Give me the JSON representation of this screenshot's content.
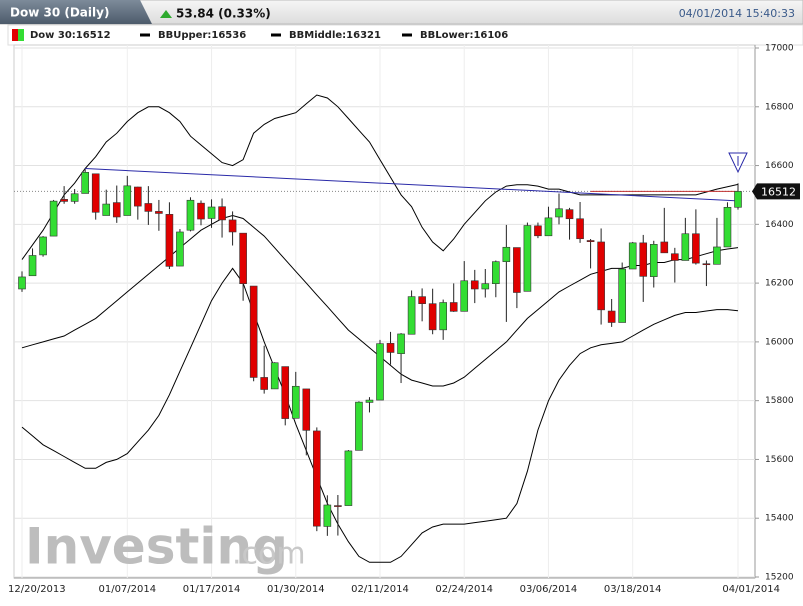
{
  "header": {
    "title": "Dow 30 (Daily)",
    "change": "53.84 (0.33%)",
    "timestamp": "04/01/2014 15:40:33"
  },
  "chart_data": {
    "type": "candlestick",
    "categories": [
      "12/20/2013",
      null,
      null,
      null,
      null,
      null,
      null,
      null,
      null,
      null,
      "01/07/2014",
      null,
      null,
      null,
      null,
      null,
      null,
      null,
      "01/17/2014",
      null,
      null,
      null,
      null,
      null,
      null,
      null,
      "01/30/2014",
      null,
      null,
      null,
      null,
      null,
      null,
      null,
      "02/11/2014",
      null,
      null,
      null,
      null,
      null,
      null,
      null,
      "02/24/2014",
      null,
      null,
      null,
      null,
      null,
      null,
      null,
      "03/06/2014",
      null,
      null,
      null,
      null,
      null,
      null,
      null,
      "03/18/2014",
      null,
      null,
      null,
      null,
      null,
      null,
      null,
      null,
      null,
      "04/01/2014"
    ],
    "candles": {
      "name": "Dow 30:16512",
      "up_color": "#33dd33",
      "down_color": "#e00000",
      "open": [
        16180,
        16225,
        16296,
        16360,
        16485,
        16478,
        16505,
        16572,
        16430,
        16474,
        16430,
        16527,
        16471,
        16444,
        16434,
        16258,
        16380,
        16472,
        16420,
        16460,
        16415,
        16370,
        16190,
        15879,
        15840,
        15916,
        15740,
        15840,
        15697,
        15372,
        15443,
        15443,
        15631,
        15794,
        15802,
        15995,
        15960,
        16026,
        16154,
        16130,
        16041,
        16134,
        16104,
        16208,
        16180,
        16198,
        16273,
        16321,
        16172,
        16395,
        16361,
        16425,
        16450,
        16419,
        16345,
        16340,
        16105,
        16066,
        16248,
        16337,
        16222,
        16340,
        16300,
        16277,
        16368,
        16266,
        16264,
        16323,
        16458
      ],
      "high": [
        16240,
        16318,
        16360,
        16483,
        16530,
        16520,
        16588,
        16573,
        16518,
        16532,
        16565,
        16528,
        16530,
        16483,
        16475,
        16384,
        16492,
        16481,
        16485,
        16488,
        16444,
        16370,
        16190,
        15987,
        15931,
        15916,
        15898,
        15840,
        15709,
        15478,
        15479,
        15632,
        15798,
        15812,
        16007,
        16034,
        16030,
        16175,
        16182,
        16181,
        16144,
        16199,
        16275,
        16245,
        16248,
        16277,
        16398,
        16321,
        16406,
        16406,
        16460,
        16505,
        16456,
        16476,
        16350,
        16386,
        16146,
        16270,
        16340,
        16364,
        16344,
        16456,
        16320,
        16422,
        16451,
        16277,
        16422,
        16475,
        16540
      ],
      "low": [
        16170,
        16225,
        16290,
        16360,
        16470,
        16470,
        16505,
        16416,
        16430,
        16405,
        16430,
        16416,
        16398,
        16378,
        16248,
        16258,
        16376,
        16397,
        16388,
        16355,
        16328,
        16140,
        15866,
        15824,
        15840,
        15716,
        15740,
        15614,
        15356,
        15340,
        15341,
        15443,
        15631,
        15760,
        15802,
        15923,
        15860,
        16026,
        16070,
        16026,
        16007,
        16102,
        16104,
        16132,
        16151,
        16152,
        16068,
        16115,
        16172,
        16353,
        16361,
        16400,
        16348,
        16337,
        16250,
        16059,
        16051,
        16066,
        16248,
        16136,
        16185,
        16303,
        16202,
        16277,
        16263,
        16190,
        16264,
        16323,
        16450
      ],
      "close": [
        16221,
        16294,
        16357,
        16479,
        16478,
        16504,
        16577,
        16441,
        16469,
        16425,
        16531,
        16462,
        16444,
        16437,
        16257,
        16374,
        16482,
        16418,
        16459,
        16415,
        16374,
        16198,
        15879,
        15838,
        15929,
        15739,
        15849,
        15699,
        15373,
        15445,
        15441,
        15629,
        15795,
        15802,
        15994,
        15964,
        16027,
        16154,
        16130,
        16041,
        16134,
        16104,
        16208,
        16180,
        16198,
        16273,
        16322,
        16168,
        16396,
        16361,
        16422,
        16453,
        16419,
        16351,
        16341,
        16109,
        16066,
        16248,
        16337,
        16223,
        16332,
        16303,
        16277,
        16368,
        16268,
        16264,
        16323,
        16458,
        16512
      ]
    },
    "series": [
      {
        "name": "BBUpper:16536",
        "color": "#000000",
        "values": [
          16280,
          16330,
          16380,
          16440,
          16500,
          16540,
          16590,
          16630,
          16680,
          16710,
          16750,
          16780,
          16800,
          16800,
          16780,
          16750,
          16700,
          16670,
          16640,
          16610,
          16600,
          16620,
          16710,
          16740,
          16760,
          16770,
          16780,
          16810,
          16840,
          16830,
          16800,
          16760,
          16720,
          16680,
          16620,
          16560,
          16500,
          16460,
          16390,
          16340,
          16310,
          16350,
          16400,
          16440,
          16480,
          16510,
          16530,
          16535,
          16535,
          16530,
          16520,
          16520,
          16510,
          16500,
          16500,
          16500,
          16500,
          16500,
          16500,
          16500,
          16500,
          16500,
          16500,
          16500,
          16500,
          16510,
          16520,
          16528,
          16536
        ]
      },
      {
        "name": "BBMiddle:16321",
        "color": "#000000",
        "values": [
          15980,
          15990,
          16000,
          16010,
          16020,
          16040,
          16060,
          16080,
          16110,
          16140,
          16170,
          16200,
          16230,
          16260,
          16290,
          16320,
          16350,
          16380,
          16400,
          16420,
          16430,
          16420,
          16390,
          16360,
          16320,
          16280,
          16240,
          16200,
          16160,
          16120,
          16080,
          16040,
          16010,
          15980,
          15950,
          15920,
          15890,
          15870,
          15860,
          15850,
          15850,
          15860,
          15880,
          15910,
          15940,
          15970,
          16000,
          16040,
          16080,
          16110,
          16140,
          16170,
          16190,
          16210,
          16230,
          16240,
          16250,
          16250,
          16260,
          16260,
          16270,
          16270,
          16280,
          16280,
          16290,
          16300,
          16310,
          16316,
          16321
        ]
      },
      {
        "name": "BBLower:16106",
        "color": "#000000",
        "values": [
          15710,
          15680,
          15650,
          15630,
          15610,
          15590,
          15570,
          15570,
          15590,
          15600,
          15620,
          15660,
          15700,
          15750,
          15820,
          15900,
          15980,
          16060,
          16140,
          16200,
          16250,
          16200,
          16100,
          16000,
          15910,
          15820,
          15720,
          15630,
          15540,
          15450,
          15380,
          15320,
          15270,
          15250,
          15250,
          15250,
          15270,
          15310,
          15350,
          15370,
          15380,
          15380,
          15380,
          15385,
          15390,
          15395,
          15400,
          15450,
          15560,
          15700,
          15800,
          15870,
          15920,
          15960,
          15980,
          15990,
          15995,
          16000,
          16020,
          16040,
          16060,
          16075,
          16090,
          16100,
          16100,
          16105,
          16110,
          16110,
          16106
        ]
      }
    ],
    "lines": [
      {
        "color": "#2a2aa8",
        "x": [
          6,
          68
        ],
        "values": [
          16590,
          16480
        ]
      },
      {
        "color": "#c03030",
        "x": [
          54,
          68
        ],
        "values": [
          16512,
          16512
        ]
      }
    ],
    "last_price": 16512,
    "ylim": [
      15200,
      17000
    ],
    "yticks": [
      15200,
      15400,
      15600,
      15800,
      16000,
      16200,
      16400,
      16600,
      16800,
      17000
    ],
    "grid": true,
    "watermark": [
      "Investing",
      ".com"
    ]
  }
}
